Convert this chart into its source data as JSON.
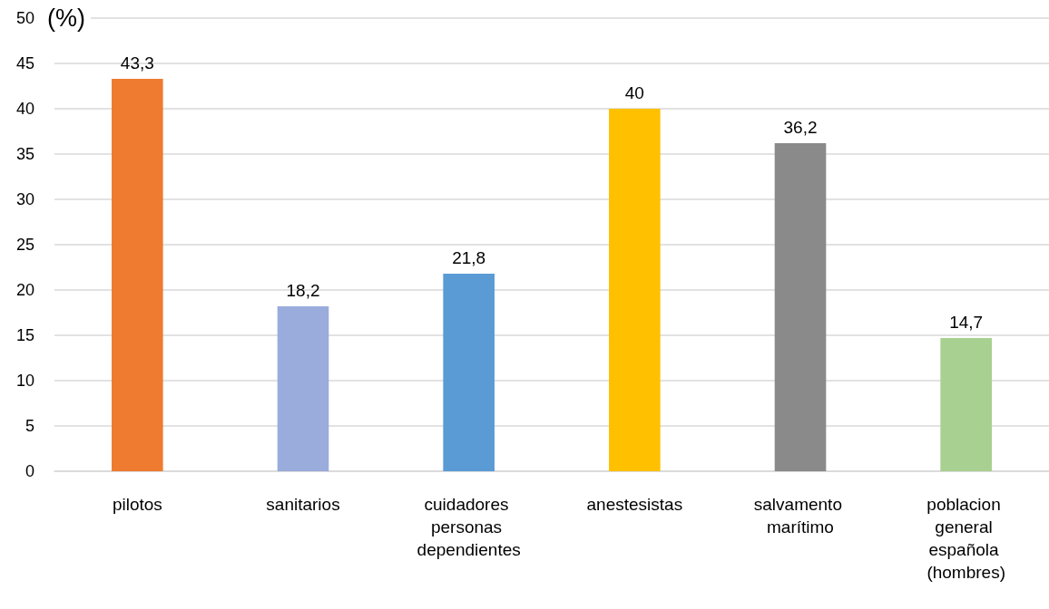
{
  "chart_data": {
    "type": "bar",
    "ylabel": "(%)",
    "categories": [
      "pilotos",
      "sanitarios",
      "cuidadores personas dependientes",
      "anestesistas",
      "salvamento marítimo",
      "poblacion general española (hombres)"
    ],
    "values": [
      43.3,
      18.2,
      21.8,
      40,
      36.2,
      14.7
    ],
    "value_labels": [
      "43,3",
      "18,2",
      "21,8",
      "40",
      "36,2",
      "14,7"
    ],
    "colors": [
      "#ee7b30",
      "#9aacdc",
      "#5a9bd6",
      "#ffc000",
      "#8a8a8a",
      "#a8d090"
    ],
    "ylim": [
      0,
      50
    ],
    "yticks": [
      0,
      5,
      10,
      15,
      20,
      25,
      30,
      35,
      40,
      45,
      50
    ],
    "grid": "y"
  }
}
